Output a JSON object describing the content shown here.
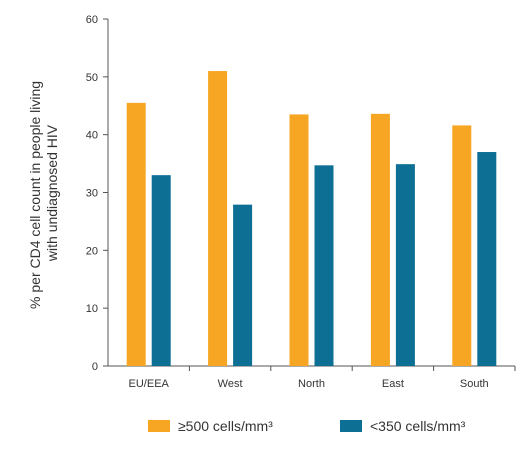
{
  "chart_data": {
    "type": "bar",
    "categories": [
      "EU/EEA",
      "West",
      "North",
      "East",
      "South"
    ],
    "series": [
      {
        "name": "≥500 cells/mm³",
        "color": "#F6A623",
        "values": [
          45.5,
          51.0,
          43.5,
          43.6,
          41.6
        ]
      },
      {
        "name": "<350 cells/mm³",
        "color": "#0E6F94",
        "values": [
          33.0,
          27.9,
          34.7,
          34.9,
          37.0
        ]
      }
    ],
    "ylabel": "% per CD4 cell count in people living with undiagnosed HIV",
    "ylabel_lines": [
      "% per CD4 cell count in people living",
      "with undiagnosed HIV"
    ],
    "ylim": [
      0,
      60
    ],
    "yticks": [
      0,
      10,
      20,
      30,
      40,
      50,
      60
    ],
    "grid": false,
    "legend_position": "bottom"
  }
}
